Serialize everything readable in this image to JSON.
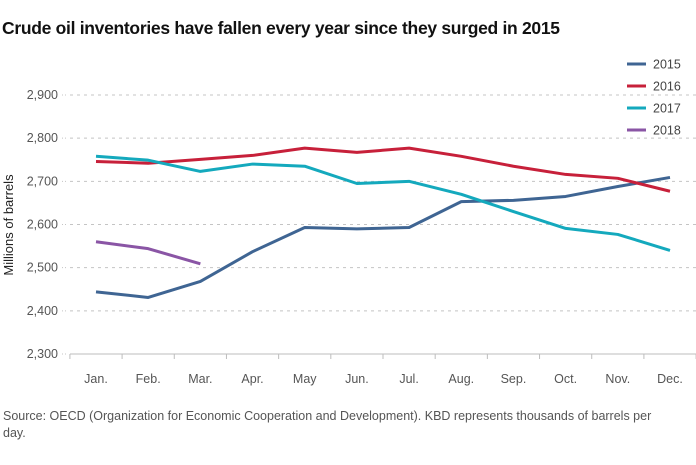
{
  "chart_data": {
    "type": "line",
    "title": "Crude oil inventories have fallen every year since they surged in 2015",
    "xlabel": "",
    "ylabel": "Millions of barrels",
    "x": [
      "Jan.",
      "Feb.",
      "Mar.",
      "Apr.",
      "May",
      "Jun.",
      "Jul.",
      "Aug.",
      "Sep.",
      "Oct.",
      "Nov.",
      "Dec."
    ],
    "ylim": [
      2300,
      2900
    ],
    "yticks": [
      2300,
      2400,
      2500,
      2600,
      2700,
      2800,
      2900
    ],
    "ytick_labels": [
      "2,300",
      "2,400",
      "2,500",
      "2,600",
      "2,700",
      "2,800",
      "2,900"
    ],
    "grid": true,
    "legend_position": "top-right",
    "series": [
      {
        "name": "2015",
        "color": "#3f6593",
        "values": [
          2444,
          2431,
          2468,
          2537,
          2593,
          2590,
          2593,
          2653,
          2656,
          2665,
          2688,
          2709
        ]
      },
      {
        "name": "2016",
        "color": "#c7203a",
        "values": [
          2746,
          2742,
          2751,
          2760,
          2777,
          2767,
          2777,
          2758,
          2735,
          2716,
          2707,
          2677
        ]
      },
      {
        "name": "2017",
        "color": "#14a9bd",
        "values": [
          2758,
          2749,
          2723,
          2740,
          2735,
          2695,
          2700,
          2670,
          2630,
          2591,
          2577,
          2540
        ]
      },
      {
        "name": "2018",
        "color": "#8a55a5",
        "values": [
          2560,
          2544,
          2509
        ]
      }
    ],
    "source": "Source:  OECD (Organization for Economic Cooperation and Development). KBD represents thousands of barrels per day."
  }
}
